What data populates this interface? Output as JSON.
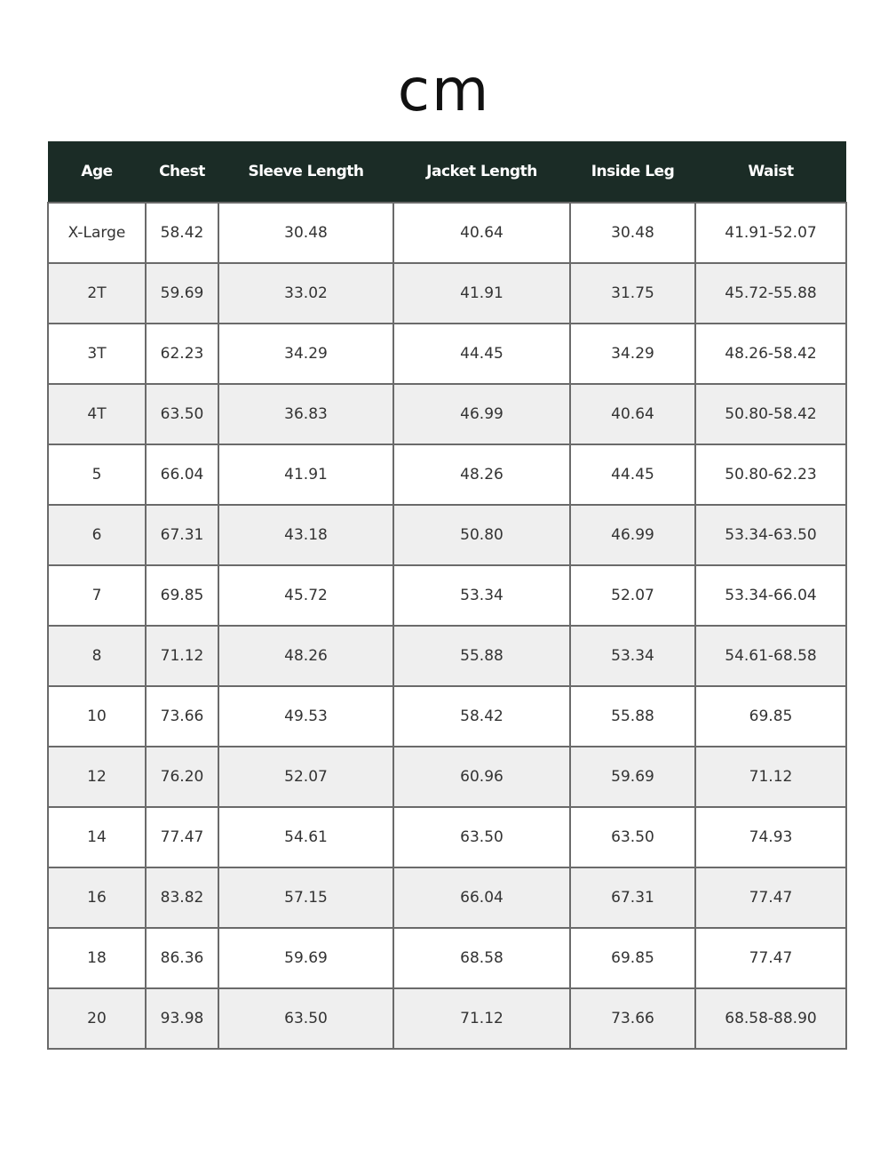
{
  "title": "cm",
  "colors": {
    "header_bg": "#1b2c26",
    "header_text": "#ffffff",
    "alt_row_bg": "#efefef",
    "border": "#6a6a6a"
  },
  "table": {
    "headers": [
      "Age",
      "Chest",
      "Sleeve Length",
      "Jacket Length",
      "Inside Leg",
      "Waist"
    ],
    "rows": [
      [
        "X-Large",
        "58.42",
        "30.48",
        "40.64",
        "30.48",
        "41.91-52.07"
      ],
      [
        "2T",
        "59.69",
        "33.02",
        "41.91",
        "31.75",
        "45.72-55.88"
      ],
      [
        "3T",
        "62.23",
        "34.29",
        "44.45",
        "34.29",
        "48.26-58.42"
      ],
      [
        "4T",
        "63.50",
        "36.83",
        "46.99",
        "40.64",
        "50.80-58.42"
      ],
      [
        "5",
        "66.04",
        "41.91",
        "48.26",
        "44.45",
        "50.80-62.23"
      ],
      [
        "6",
        "67.31",
        "43.18",
        "50.80",
        "46.99",
        "53.34-63.50"
      ],
      [
        "7",
        "69.85",
        "45.72",
        "53.34",
        "52.07",
        "53.34-66.04"
      ],
      [
        "8",
        "71.12",
        "48.26",
        "55.88",
        "53.34",
        "54.61-68.58"
      ],
      [
        "10",
        "73.66",
        "49.53",
        "58.42",
        "55.88",
        "69.85"
      ],
      [
        "12",
        "76.20",
        "52.07",
        "60.96",
        "59.69",
        "71.12"
      ],
      [
        "14",
        "77.47",
        "54.61",
        "63.50",
        "63.50",
        "74.93"
      ],
      [
        "16",
        "83.82",
        "57.15",
        "66.04",
        "67.31",
        "77.47"
      ],
      [
        "18",
        "86.36",
        "59.69",
        "68.58",
        "69.85",
        "77.47"
      ],
      [
        "20",
        "93.98",
        "63.50",
        "71.12",
        "73.66",
        "68.58-88.90"
      ]
    ]
  }
}
